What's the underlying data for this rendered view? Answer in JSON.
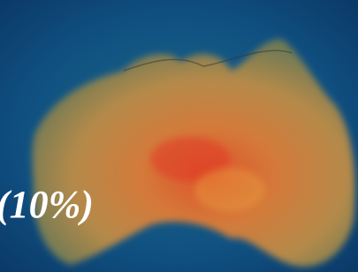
{
  "overlay": {
    "text": "(10%)"
  }
}
